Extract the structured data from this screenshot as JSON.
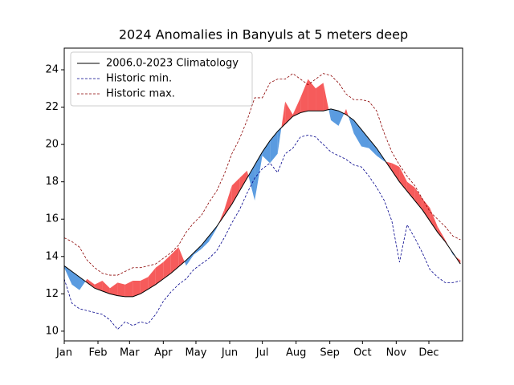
{
  "chart_data": {
    "type": "line",
    "title": "2024 Anomalies in Banyuls at 5 meters deep",
    "x": [
      0,
      7,
      14,
      21,
      28,
      35,
      42,
      49,
      56,
      63,
      70,
      77,
      84,
      91,
      98,
      105,
      112,
      119,
      126,
      133,
      140,
      147,
      154,
      161,
      168,
      175,
      182,
      189,
      196,
      203,
      210,
      217,
      224,
      231,
      238,
      245,
      252,
      259,
      266,
      273,
      280,
      287,
      294,
      301,
      308,
      315,
      322,
      329,
      336,
      343,
      350,
      357,
      364
    ],
    "series": [
      {
        "name": "2006.0-2023 Climatology",
        "color": "#000000",
        "dash": "none",
        "values": [
          13.5,
          13.2,
          12.9,
          12.6,
          12.3,
          12.15,
          12.0,
          11.9,
          11.85,
          11.85,
          12.0,
          12.25,
          12.5,
          12.8,
          13.1,
          13.45,
          13.8,
          14.2,
          14.6,
          15.1,
          15.6,
          16.2,
          16.8,
          17.5,
          18.2,
          18.9,
          19.6,
          20.2,
          20.7,
          21.1,
          21.5,
          21.7,
          21.8,
          21.8,
          21.8,
          21.9,
          21.8,
          21.6,
          21.3,
          20.8,
          20.3,
          19.8,
          19.2,
          18.6,
          18.0,
          17.5,
          17.0,
          16.5,
          15.9,
          15.3,
          14.8,
          14.2,
          13.6
        ]
      },
      {
        "name": "Historic min.",
        "color": "#00008b",
        "dash": "3,2",
        "values": [
          12.8,
          11.5,
          11.2,
          11.1,
          11.0,
          10.9,
          10.6,
          10.1,
          10.5,
          10.3,
          10.5,
          10.4,
          10.9,
          11.6,
          12.1,
          12.5,
          12.8,
          13.3,
          13.6,
          13.9,
          14.3,
          15.0,
          15.8,
          16.5,
          17.4,
          18.2,
          18.7,
          19.0,
          18.5,
          19.5,
          19.8,
          20.4,
          20.5,
          20.4,
          20.0,
          19.6,
          19.4,
          19.2,
          18.9,
          18.8,
          18.3,
          17.7,
          17.0,
          15.9,
          13.7,
          15.7,
          15.0,
          14.2,
          13.3,
          12.9,
          12.6,
          12.6,
          12.7
        ]
      },
      {
        "name": "Historic max.",
        "color": "#8b0000",
        "dash": "3,2",
        "values": [
          15.0,
          14.8,
          14.5,
          13.8,
          13.4,
          13.1,
          13.0,
          13.0,
          13.2,
          13.4,
          13.4,
          13.5,
          13.6,
          13.9,
          14.2,
          14.6,
          15.3,
          15.8,
          16.2,
          16.9,
          17.5,
          18.4,
          19.5,
          20.3,
          21.3,
          22.5,
          22.5,
          23.3,
          23.5,
          23.5,
          23.8,
          23.5,
          23.2,
          23.5,
          23.8,
          23.7,
          23.3,
          22.7,
          22.4,
          22.4,
          22.3,
          21.8,
          20.6,
          19.6,
          18.9,
          18.3,
          17.8,
          17.1,
          16.4,
          16.0,
          15.6,
          15.1,
          14.9
        ]
      }
    ],
    "observed": {
      "values": [
        13.4,
        12.5,
        12.2,
        12.8,
        12.5,
        12.7,
        12.3,
        12.6,
        12.5,
        12.7,
        12.7,
        12.9,
        13.4,
        13.7,
        14.1,
        14.5,
        13.5,
        14.1,
        14.4,
        14.8,
        15.5,
        16.5,
        17.8,
        18.2,
        18.6,
        17.0,
        19.4,
        19.0,
        19.5,
        22.3,
        21.6,
        22.5,
        23.5,
        23.0,
        23.3,
        21.3,
        21.0,
        21.9,
        20.6,
        19.9,
        19.8,
        19.4,
        19.1,
        19.0,
        18.8,
        18.0,
        17.7,
        17.1,
        16.6,
        15.6,
        14.9,
        14.1,
        13.8
      ]
    },
    "fill_above_color": "#f65b5b",
    "fill_below_color": "#5a9be0",
    "xlim": [
      0,
      366
    ],
    "xticks": [
      {
        "value": 0,
        "label": "Jan"
      },
      {
        "value": 31,
        "label": "Feb"
      },
      {
        "value": 60,
        "label": "Mar"
      },
      {
        "value": 91,
        "label": "Apr"
      },
      {
        "value": 121,
        "label": "May"
      },
      {
        "value": 152,
        "label": "Jun"
      },
      {
        "value": 182,
        "label": "Jul"
      },
      {
        "value": 213,
        "label": "Aug"
      },
      {
        "value": 244,
        "label": "Sep"
      },
      {
        "value": 274,
        "label": "Oct"
      },
      {
        "value": 305,
        "label": "Nov"
      },
      {
        "value": 335,
        "label": "Dec"
      }
    ],
    "ylim": [
      9.48,
      25.16
    ],
    "yticks": [
      10,
      12,
      14,
      16,
      18,
      20,
      22,
      24
    ],
    "legend": "upper left"
  }
}
